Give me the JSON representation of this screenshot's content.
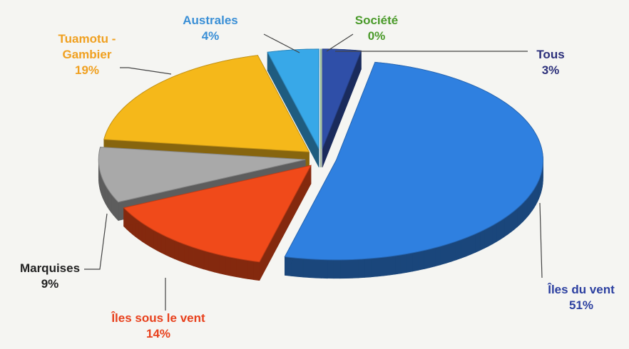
{
  "chart_data": {
    "type": "pie",
    "categories": [
      "Tous",
      "Îles du vent",
      "Îles sous le vent",
      "Marquises",
      "Tuamotu - Gambier",
      "Australes",
      "Société"
    ],
    "values": [
      3,
      51,
      14,
      9,
      19,
      4,
      0
    ],
    "value_labels": [
      "3%",
      "51%",
      "14%",
      "9%",
      "19%",
      "4%",
      "0%"
    ],
    "colors": [
      "#2f4fa8",
      "#2f80e0",
      "#f04a1a",
      "#a9a9a9",
      "#f5b81a",
      "#38a8e8",
      "#3a9a3a"
    ]
  }
}
